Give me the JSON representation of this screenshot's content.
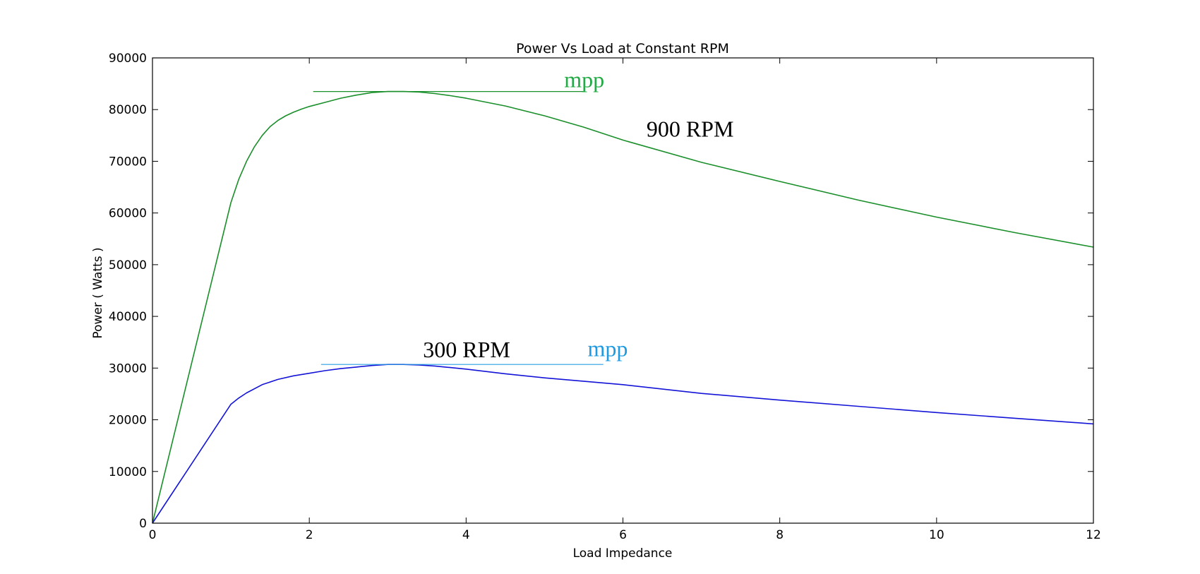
{
  "chart_data": {
    "type": "line",
    "title": "Power Vs Load at Constant RPM",
    "xlabel": "Load Impedance",
    "ylabel": "Power ( Watts )",
    "xlim": [
      0,
      12
    ],
    "ylim": [
      0,
      90000
    ],
    "xticks": [
      0,
      2,
      4,
      6,
      8,
      10,
      12
    ],
    "yticks": [
      0,
      10000,
      20000,
      30000,
      40000,
      50000,
      60000,
      70000,
      80000,
      90000
    ],
    "grid": false,
    "series": [
      {
        "color": "#1a8f2a",
        "x": [
          0,
          1.0,
          1.1,
          1.2,
          1.3,
          1.4,
          1.5,
          1.6,
          1.7,
          1.8,
          1.9,
          2.0,
          2.2,
          2.4,
          2.6,
          2.8,
          3.0,
          3.2,
          3.4,
          3.6,
          3.8,
          4.0,
          4.5,
          5.0,
          5.5,
          6.0,
          7.0,
          8.0,
          9.0,
          10.0,
          11.0,
          12.0
        ],
        "y": [
          0,
          62000,
          66500,
          70000,
          72800,
          75000,
          76700,
          77900,
          78800,
          79500,
          80100,
          80600,
          81400,
          82200,
          82800,
          83300,
          83500,
          83500,
          83400,
          83100,
          82700,
          82200,
          80700,
          78800,
          76600,
          74100,
          69800,
          66100,
          62500,
          59200,
          56200,
          53400
        ]
      },
      {
        "color": "#1414d8",
        "x": [
          0,
          1.0,
          1.1,
          1.2,
          1.4,
          1.6,
          1.8,
          2.0,
          2.2,
          2.4,
          2.6,
          2.8,
          3.0,
          3.2,
          3.4,
          3.6,
          3.8,
          4.0,
          4.5,
          5.0,
          6.0,
          7.0,
          8.0,
          9.0,
          10.0,
          11.0,
          12.0
        ],
        "y": [
          0,
          23000,
          24200,
          25200,
          26800,
          27800,
          28500,
          29000,
          29500,
          29900,
          30200,
          30500,
          30700,
          30700,
          30600,
          30400,
          30100,
          29800,
          28900,
          28100,
          26800,
          25100,
          23800,
          22600,
          21400,
          20300,
          19200
        ]
      }
    ],
    "mpp_lines": [
      {
        "color": "#1a8f2a",
        "y": 83500,
        "x_start": 2.05,
        "x_end": 5.5
      },
      {
        "color": "#2a9ee0",
        "y": 30700,
        "x_start": 2.15,
        "x_end": 5.75
      }
    ],
    "annotations": [
      {
        "text": "mpp",
        "x": 5.25,
        "y": 84300,
        "color": "#22aa44"
      },
      {
        "text": "900 RPM",
        "x": 6.3,
        "y": 74800,
        "color": "#000000"
      },
      {
        "text": "300 RPM",
        "x": 3.45,
        "y": 32100,
        "color": "#000000"
      },
      {
        "text": "mpp",
        "x": 5.55,
        "y": 32300,
        "color": "#1e9ae0"
      }
    ]
  }
}
